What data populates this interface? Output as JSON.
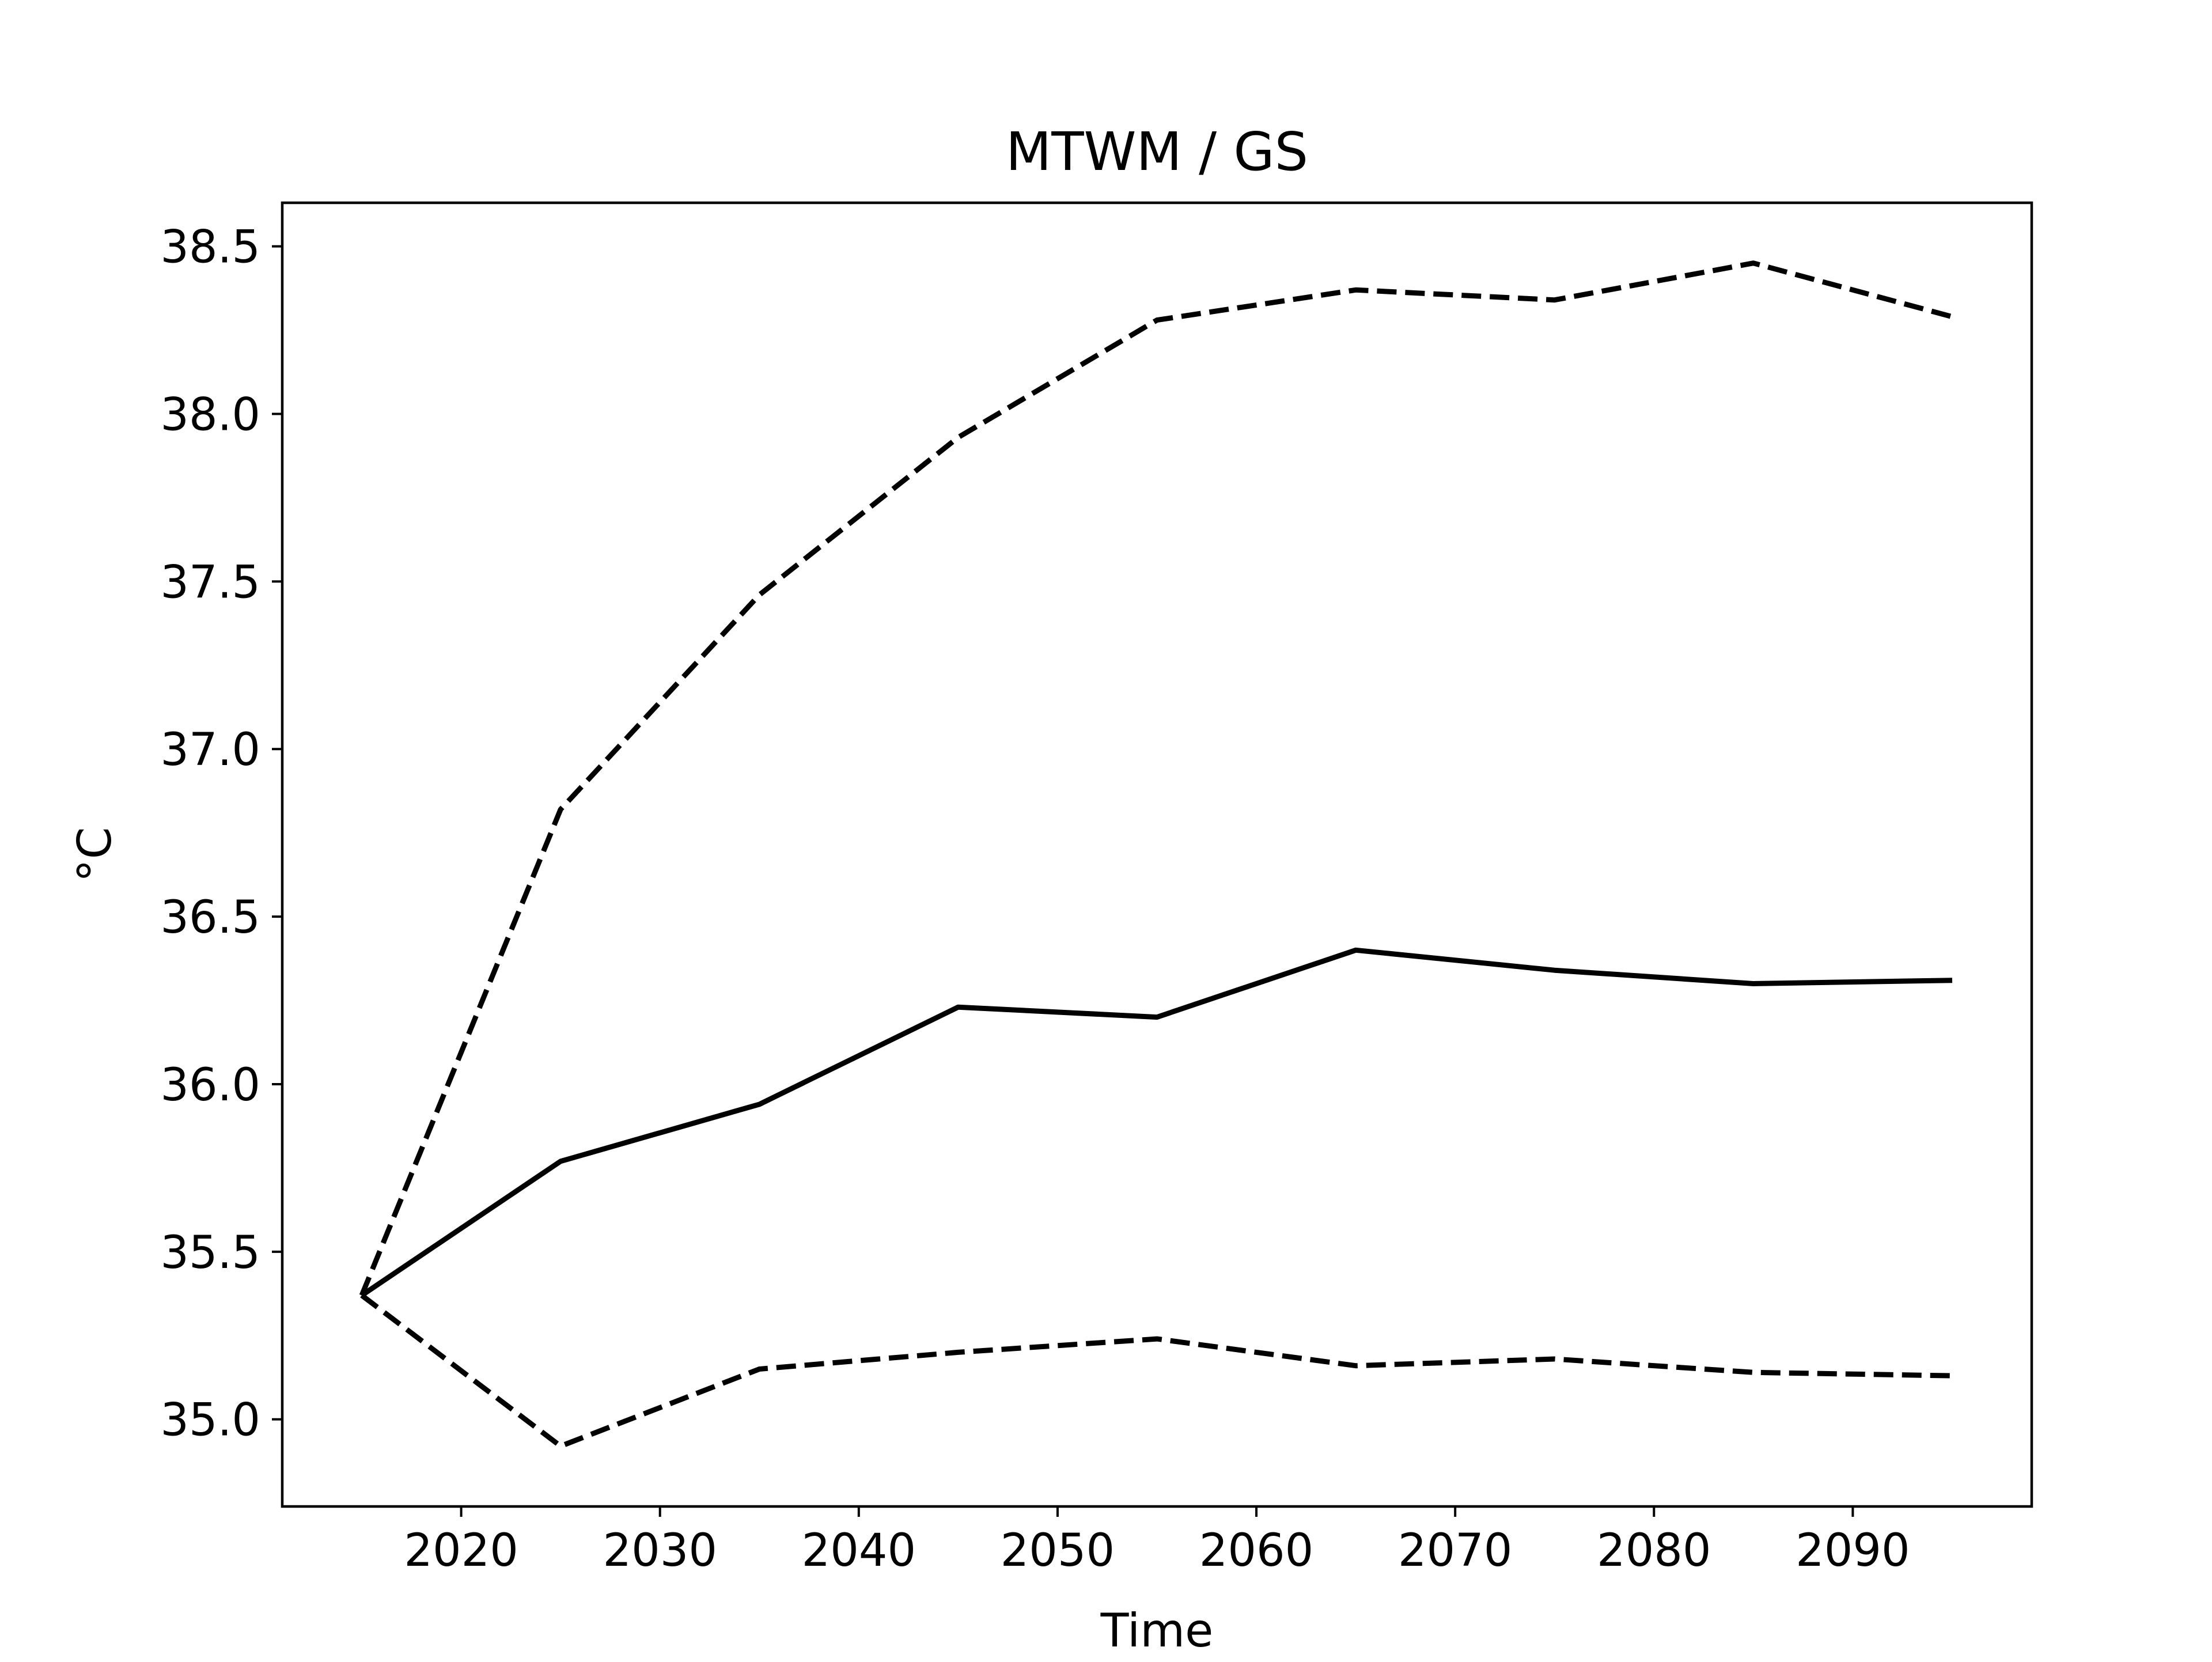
{
  "chart_data": {
    "type": "line",
    "title": "MTWM / GS",
    "xlabel": "Time",
    "ylabel": "°C",
    "xlim": [
      2011,
      2099
    ],
    "ylim": [
      34.74,
      38.63
    ],
    "x": [
      2015,
      2025,
      2035,
      2045,
      2055,
      2065,
      2075,
      2085,
      2095
    ],
    "xticks": [
      2020,
      2030,
      2040,
      2050,
      2060,
      2070,
      2080,
      2090
    ],
    "xtick_labels": [
      "2020",
      "2030",
      "2040",
      "2050",
      "2060",
      "2070",
      "2080",
      "2090"
    ],
    "yticks": [
      35.0,
      35.5,
      36.0,
      36.5,
      37.0,
      37.5,
      38.0,
      38.5
    ],
    "ytick_labels": [
      "35.0",
      "35.5",
      "36.0",
      "36.5",
      "37.0",
      "37.5",
      "38.0",
      "38.5"
    ],
    "grid": false,
    "series": [
      {
        "style": "dashed",
        "color": "#000000",
        "values": [
          35.37,
          36.82,
          37.46,
          37.93,
          38.28,
          38.37,
          38.34,
          38.45,
          38.29
        ]
      },
      {
        "style": "solid",
        "color": "#000000",
        "values": [
          35.37,
          35.77,
          35.94,
          36.23,
          36.2,
          36.4,
          36.34,
          36.3,
          36.31
        ]
      },
      {
        "style": "dashed",
        "color": "#000000",
        "values": [
          35.37,
          34.92,
          35.15,
          35.2,
          35.24,
          35.16,
          35.18,
          35.14,
          35.13
        ]
      }
    ]
  }
}
